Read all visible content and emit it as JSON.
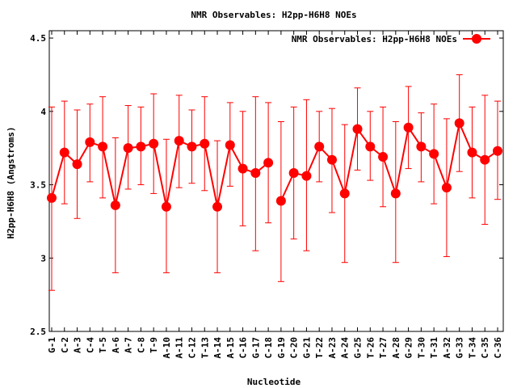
{
  "chart_data": {
    "type": "line",
    "title": "NMR Observables: H2pp-H6H8 NOEs",
    "xlabel": "Nucleotide",
    "ylabel": "H2pp-H6H8 (Angstroms)",
    "ylim": [
      2.5,
      4.55
    ],
    "yticks": [
      "2.5",
      "3",
      "3.5",
      "4",
      "4.5"
    ],
    "grid": false,
    "legend_position": "top-right",
    "series": [
      {
        "name": "NMR Observables: H2pp-H6H8 NOEs",
        "color": "#ff0000",
        "marker": "circle",
        "points": [
          {
            "label": "G-1",
            "y": 3.41,
            "lo": 2.78,
            "hi": 4.03
          },
          {
            "label": "C-2",
            "y": 3.72,
            "lo": 3.37,
            "hi": 4.07
          },
          {
            "label": "A-3",
            "y": 3.64,
            "lo": 3.27,
            "hi": 4.01
          },
          {
            "label": "C-4",
            "y": 3.79,
            "lo": 3.52,
            "hi": 4.05
          },
          {
            "label": "T-5",
            "y": 3.76,
            "lo": 3.41,
            "hi": 4.1
          },
          {
            "label": "A-6",
            "y": 3.36,
            "lo": 2.9,
            "hi": 3.82
          },
          {
            "label": "A-7",
            "y": 3.75,
            "lo": 3.47,
            "hi": 4.04
          },
          {
            "label": "C-8",
            "y": 3.76,
            "lo": 3.5,
            "hi": 4.03
          },
          {
            "label": "T-9",
            "y": 3.78,
            "lo": 3.44,
            "hi": 4.12
          },
          {
            "label": "A-10",
            "y": 3.35,
            "lo": 2.9,
            "hi": 3.81
          },
          {
            "label": "A-11",
            "y": 3.8,
            "lo": 3.48,
            "hi": 4.11
          },
          {
            "label": "C-12",
            "y": 3.76,
            "lo": 3.51,
            "hi": 4.01
          },
          {
            "label": "T-13",
            "y": 3.78,
            "lo": 3.46,
            "hi": 4.1
          },
          {
            "label": "A-14",
            "y": 3.35,
            "lo": 2.9,
            "hi": 3.8
          },
          {
            "label": "A-15",
            "y": 3.77,
            "lo": 3.49,
            "hi": 4.06
          },
          {
            "label": "C-16",
            "y": 3.61,
            "lo": 3.22,
            "hi": 4.0
          },
          {
            "label": "G-17",
            "y": 3.58,
            "lo": 3.05,
            "hi": 4.1
          },
          {
            "label": "C-18",
            "y": 3.65,
            "lo": 3.24,
            "hi": 4.06
          },
          {
            "label": "G-19",
            "y": 3.39,
            "lo": 2.84,
            "hi": 3.93
          },
          {
            "label": "C-20",
            "y": 3.58,
            "lo": 3.13,
            "hi": 4.03
          },
          {
            "label": "G-21",
            "y": 3.56,
            "lo": 3.05,
            "hi": 4.08
          },
          {
            "label": "T-22",
            "y": 3.76,
            "lo": 3.52,
            "hi": 4.0
          },
          {
            "label": "A-23",
            "y": 3.67,
            "lo": 3.31,
            "hi": 4.02
          },
          {
            "label": "A-24",
            "y": 3.44,
            "lo": 2.97,
            "hi": 3.91
          },
          {
            "label": "G-25",
            "y": 3.88,
            "lo": 3.6,
            "hi": 4.16
          },
          {
            "label": "T-26",
            "y": 3.76,
            "lo": 3.53,
            "hi": 4.0
          },
          {
            "label": "T-27",
            "y": 3.69,
            "lo": 3.35,
            "hi": 4.03
          },
          {
            "label": "A-28",
            "y": 3.44,
            "lo": 2.97,
            "hi": 3.93
          },
          {
            "label": "G-29",
            "y": 3.89,
            "lo": 3.61,
            "hi": 4.17
          },
          {
            "label": "T-30",
            "y": 3.76,
            "lo": 3.52,
            "hi": 3.99
          },
          {
            "label": "T-31",
            "y": 3.71,
            "lo": 3.37,
            "hi": 4.05
          },
          {
            "label": "A-32",
            "y": 3.48,
            "lo": 3.01,
            "hi": 3.95
          },
          {
            "label": "G-33",
            "y": 3.92,
            "lo": 3.59,
            "hi": 4.25
          },
          {
            "label": "T-34",
            "y": 3.72,
            "lo": 3.41,
            "hi": 4.03
          },
          {
            "label": "C-35",
            "y": 3.67,
            "lo": 3.23,
            "hi": 4.11
          },
          {
            "label": "C-36",
            "y": 3.73,
            "lo": 3.4,
            "hi": 4.07
          }
        ],
        "gap_after": "C-18"
      }
    ]
  }
}
